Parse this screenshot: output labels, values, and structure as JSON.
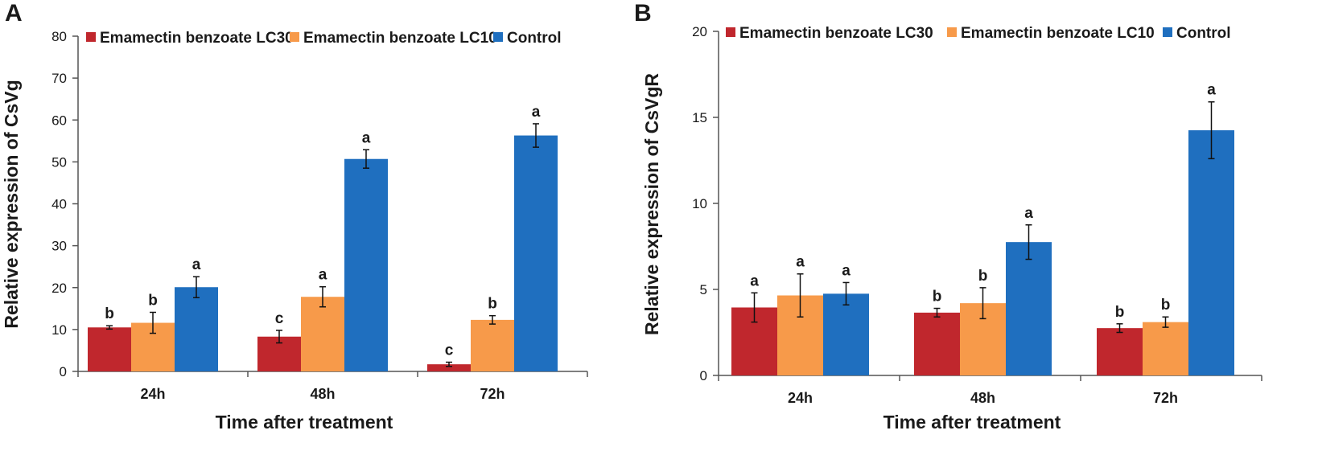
{
  "colors": {
    "LC30": "#c0272d",
    "LC10": "#f79a4a",
    "Control": "#1f6fbf"
  },
  "chart_data": [
    {
      "panel": "A",
      "type": "bar",
      "categories": [
        "24h",
        "48h",
        "72h"
      ],
      "xlabel": "Time after treatment",
      "ylabel": "Relative expression of CsVg",
      "ylim": [
        0,
        80
      ],
      "yticks": [
        0,
        10,
        20,
        30,
        40,
        50,
        60,
        70,
        80
      ],
      "legend_position": "top",
      "series": [
        {
          "name": "Emamectin benzoate LC30",
          "key": "LC30",
          "values": [
            10.5,
            8.3,
            1.7
          ],
          "errors": [
            0.4,
            1.5,
            0.5
          ],
          "letters": [
            "b",
            "c",
            "c"
          ]
        },
        {
          "name": "Emamectin benzoate LC10",
          "key": "LC10",
          "values": [
            11.6,
            17.8,
            12.3
          ],
          "errors": [
            2.5,
            2.4,
            1.0
          ],
          "letters": [
            "b",
            "a",
            "b"
          ]
        },
        {
          "name": "Control",
          "key": "Control",
          "values": [
            20.1,
            50.7,
            56.3
          ],
          "errors": [
            2.5,
            2.2,
            2.8
          ],
          "letters": [
            "a",
            "a",
            "a"
          ]
        }
      ]
    },
    {
      "panel": "B",
      "type": "bar",
      "categories": [
        "24h",
        "48h",
        "72h"
      ],
      "xlabel": "Time after treatment",
      "ylabel": "Relative expression of CsVgR",
      "ylim": [
        0,
        20
      ],
      "yticks": [
        0,
        5,
        10,
        15,
        20
      ],
      "legend_position": "top",
      "series": [
        {
          "name": "Emamectin benzoate LC30",
          "key": "LC30",
          "values": [
            3.95,
            3.65,
            2.75
          ],
          "errors": [
            0.85,
            0.25,
            0.25
          ],
          "letters": [
            "a",
            "b",
            "b"
          ]
        },
        {
          "name": "Emamectin benzoate LC10",
          "key": "LC10",
          "values": [
            4.65,
            4.2,
            3.1
          ],
          "errors": [
            1.25,
            0.9,
            0.3
          ],
          "letters": [
            "a",
            "b",
            "b"
          ]
        },
        {
          "name": "Control",
          "key": "Control",
          "values": [
            4.75,
            7.75,
            14.25
          ],
          "errors": [
            0.65,
            1.0,
            1.65
          ],
          "letters": [
            "a",
            "a",
            "a"
          ]
        }
      ]
    }
  ]
}
